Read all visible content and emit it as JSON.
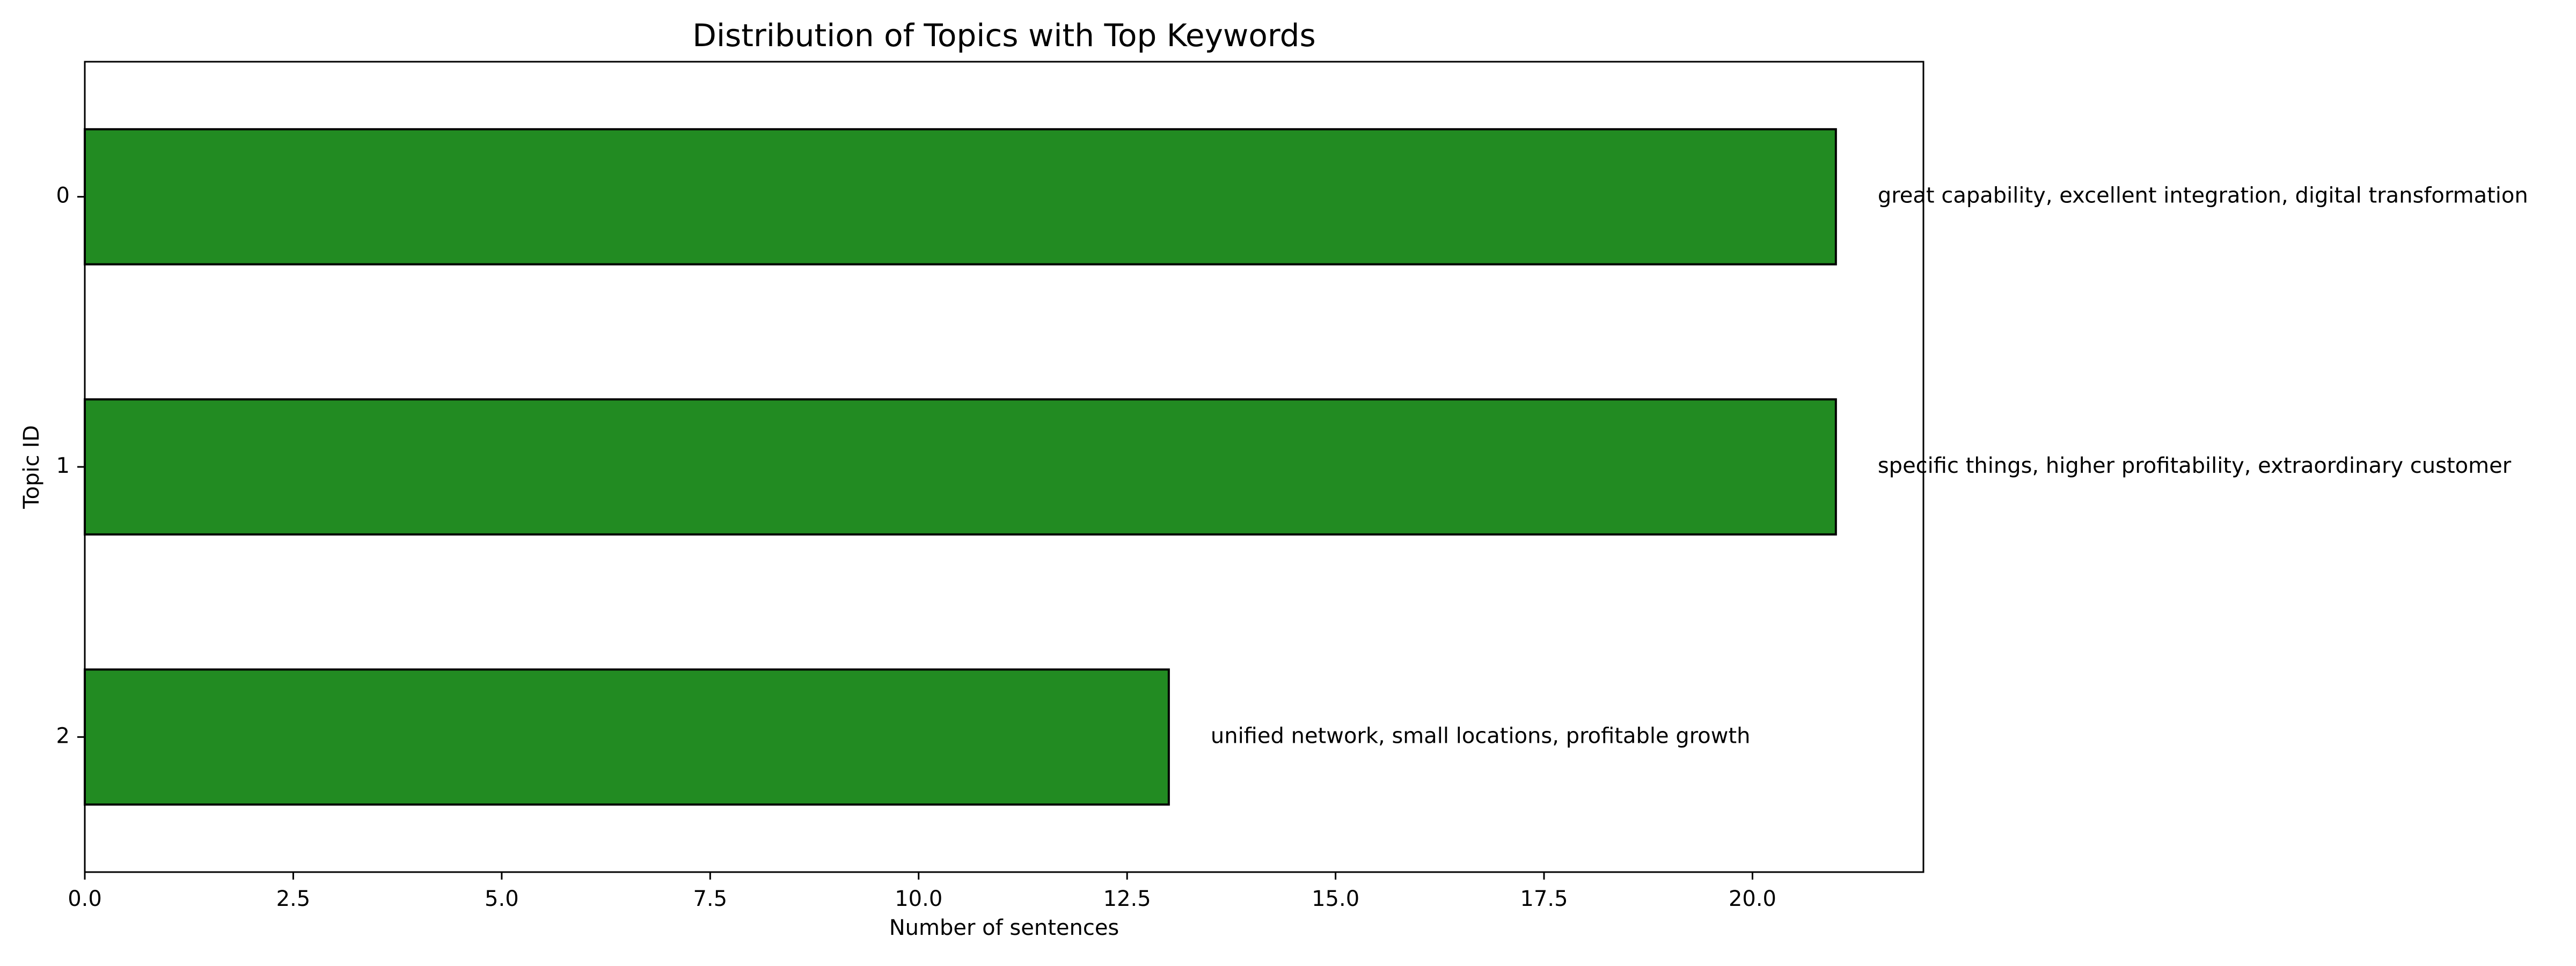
{
  "chart_data": {
    "type": "bar",
    "orientation": "horizontal",
    "title": "Distribution of Topics with Top Keywords",
    "xlabel": "Number of sentences",
    "ylabel": "Topic ID",
    "categories": [
      "0",
      "1",
      "2"
    ],
    "values": [
      21,
      21,
      13
    ],
    "annotations": [
      "great capability, excellent integration, digital transformation",
      "specific things, higher profitability, extraordinary customer",
      "unified network, small locations, profitable growth"
    ],
    "xlim": [
      0,
      22.05
    ],
    "xticks": [
      0,
      2.5,
      5,
      7.5,
      10,
      12.5,
      15,
      17.5,
      20
    ],
    "xtick_labels": [
      "0.0",
      "2.5",
      "5.0",
      "7.5",
      "10.0",
      "12.5",
      "15.0",
      "17.5",
      "20.0"
    ],
    "grid": false,
    "bar_color": "#228b22",
    "bar_edge_color": "#000000"
  }
}
